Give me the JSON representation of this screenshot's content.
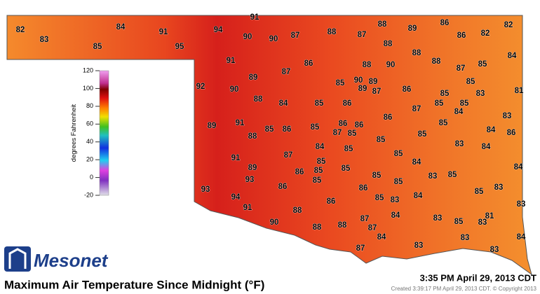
{
  "title": "Maximum Air Temperature Since Midnight (°F)",
  "timestamp": "3:35 PM April 29, 2013 CDT",
  "created": "Created 3:39:17 PM April 29, 2013 CDT. © Copyright 2013",
  "logo": "Mesonet",
  "colorbar": {
    "label": "degrees Fahrenheit",
    "ylim": [
      -20,
      120
    ],
    "yticks": [
      120,
      100,
      80,
      60,
      40,
      20,
      0,
      -20
    ]
  },
  "station_values": [
    91,
    82,
    83,
    84,
    85,
    91,
    95,
    94,
    90,
    90,
    87,
    88,
    87,
    88,
    88,
    89,
    86,
    86,
    82,
    82,
    88,
    88,
    88,
    90,
    86,
    87,
    91,
    89,
    87,
    85,
    84,
    92,
    90,
    85,
    90,
    89,
    89,
    87,
    86,
    85,
    85,
    83,
    81,
    88,
    84,
    85,
    86,
    87,
    85,
    85,
    84,
    83,
    89,
    91,
    88,
    85,
    86,
    85,
    86,
    86,
    87,
    85,
    86,
    85,
    85,
    85,
    84,
    86,
    84,
    85,
    87,
    91,
    89,
    85,
    84,
    83,
    84,
    85,
    86,
    85,
    85,
    85,
    86,
    93,
    93,
    85,
    85,
    83,
    85,
    84,
    83,
    85,
    86,
    94,
    91,
    86,
    85,
    83,
    84,
    83,
    88,
    90,
    88,
    88,
    87,
    84,
    87,
    83,
    85,
    83,
    81,
    84,
    83,
    84,
    87,
    83,
    83
  ]
}
